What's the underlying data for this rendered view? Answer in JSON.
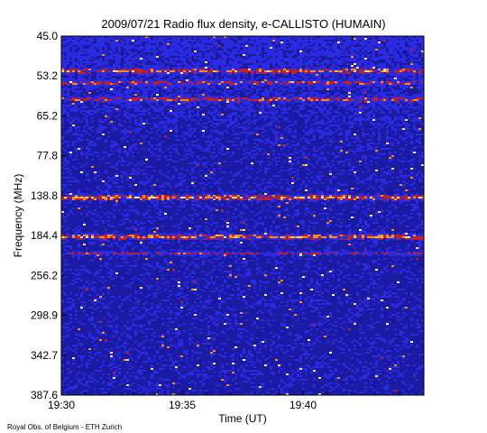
{
  "chart_data": {
    "type": "heatmap",
    "title": "2009/07/21  Radio flux density, e-CALLISTO (HUMAIN)",
    "xlabel": "Time (UT)",
    "ylabel": "Frequency (MHz)",
    "credit": "Royal Obs. of Belgium - ETH Zurich",
    "x_ticks": [
      "19:30",
      "19:35",
      "19:40"
    ],
    "x_tick_minutes": [
      0,
      5,
      10
    ],
    "x_range_minutes": [
      0,
      15
    ],
    "y_ticks": [
      "45.0",
      "53.2",
      "65.2",
      "77.8",
      "138.8",
      "184.4",
      "256.2",
      "298.9",
      "342.7",
      "387.6"
    ],
    "y_range_mhz": [
      45.0,
      387.6
    ],
    "colormap": [
      "#000000",
      "#1a1aa0",
      "#2a2ae0",
      "#c0202a",
      "#ff8a1a",
      "#ffe070",
      "#ffffff"
    ],
    "bands_mhz": [
      {
        "f": 52.0,
        "level": 0.85
      },
      {
        "f": 55.0,
        "level": 0.75
      },
      {
        "f": 60.0,
        "level": 0.8
      },
      {
        "f": 140.0,
        "level": 0.95
      },
      {
        "f": 185.0,
        "level": 0.9
      },
      {
        "f": 215.0,
        "level": 0.6
      }
    ]
  }
}
